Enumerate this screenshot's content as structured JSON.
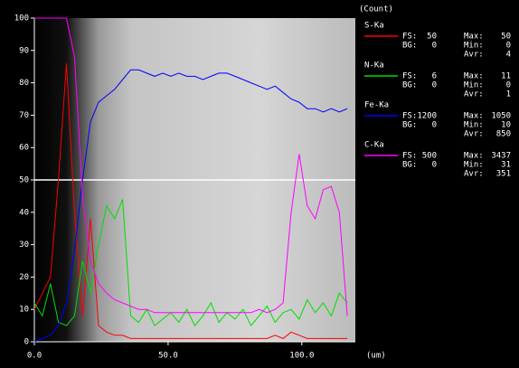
{
  "chart_data": {
    "type": "line",
    "y_unit": "(Count)",
    "x_unit": "(um)",
    "stat_labels": {
      "fs": "FS:",
      "bg": "BG:",
      "max": "Max:",
      "min": "Min:",
      "avr": "Avr:"
    },
    "x": [
      0,
      3,
      6,
      9,
      12,
      15,
      18,
      21,
      24,
      27,
      30,
      33,
      36,
      39,
      42,
      45,
      48,
      51,
      54,
      57,
      60,
      63,
      66,
      69,
      72,
      75,
      78,
      81,
      84,
      87,
      90,
      93,
      96,
      99,
      102,
      105,
      108,
      111,
      114,
      117
    ],
    "xlim": [
      0,
      120
    ],
    "xticks": [
      {
        "value": 0,
        "label": "0.0"
      },
      {
        "value": 50,
        "label": "50.0"
      },
      {
        "value": 100,
        "label": "100.0"
      }
    ],
    "ylim": [
      0,
      100
    ],
    "yticks": [
      0,
      10,
      20,
      30,
      40,
      50,
      60,
      70,
      80,
      90,
      100
    ],
    "series": [
      {
        "name": "S-Ka",
        "color": "#ff0000",
        "fs": 50,
        "bg": 0,
        "max": 50,
        "min": 0,
        "avr": 4,
        "values": [
          10,
          15,
          20,
          50,
          86,
          40,
          8,
          38,
          5,
          3,
          2,
          2,
          1,
          1,
          1,
          1,
          1,
          1,
          1,
          1,
          1,
          1,
          1,
          1,
          1,
          1,
          1,
          1,
          1,
          1,
          2,
          1,
          3,
          2,
          1,
          1,
          1,
          1,
          1,
          1
        ]
      },
      {
        "name": "N-Ka",
        "color": "#00dd00",
        "fs": 6,
        "bg": 0,
        "max": 11,
        "min": 0,
        "avr": 1,
        "values": [
          12,
          8,
          18,
          6,
          5,
          8,
          25,
          15,
          30,
          42,
          38,
          44,
          8,
          6,
          10,
          5,
          7,
          9,
          6,
          10,
          5,
          8,
          12,
          6,
          9,
          7,
          10,
          5,
          8,
          11,
          6,
          9,
          10,
          7,
          13,
          9,
          12,
          8,
          15,
          12
        ]
      },
      {
        "name": "Fe-Ka",
        "color": "#0000ff",
        "fs": 1200,
        "bg": 0,
        "max": 1050,
        "min": 10,
        "avr": 850,
        "values": [
          0,
          1,
          2,
          5,
          12,
          28,
          50,
          68,
          74,
          76,
          78,
          81,
          84,
          84,
          83,
          82,
          83,
          82,
          83,
          82,
          82,
          81,
          82,
          83,
          83,
          82,
          81,
          80,
          79,
          78,
          79,
          77,
          75,
          74,
          72,
          72,
          71,
          72,
          71,
          72
        ]
      },
      {
        "name": "C-Ka",
        "color": "#ff00ff",
        "fs": 500,
        "bg": 0,
        "max": 3437,
        "min": 31,
        "avr": 351,
        "values": [
          100,
          100,
          100,
          100,
          100,
          88,
          45,
          25,
          18,
          15,
          13,
          12,
          11,
          10,
          10,
          9,
          9,
          9,
          9,
          9,
          9,
          9,
          9,
          9,
          9,
          9,
          9,
          9,
          10,
          9,
          10,
          12,
          40,
          58,
          42,
          38,
          47,
          48,
          40,
          8
        ]
      }
    ]
  }
}
